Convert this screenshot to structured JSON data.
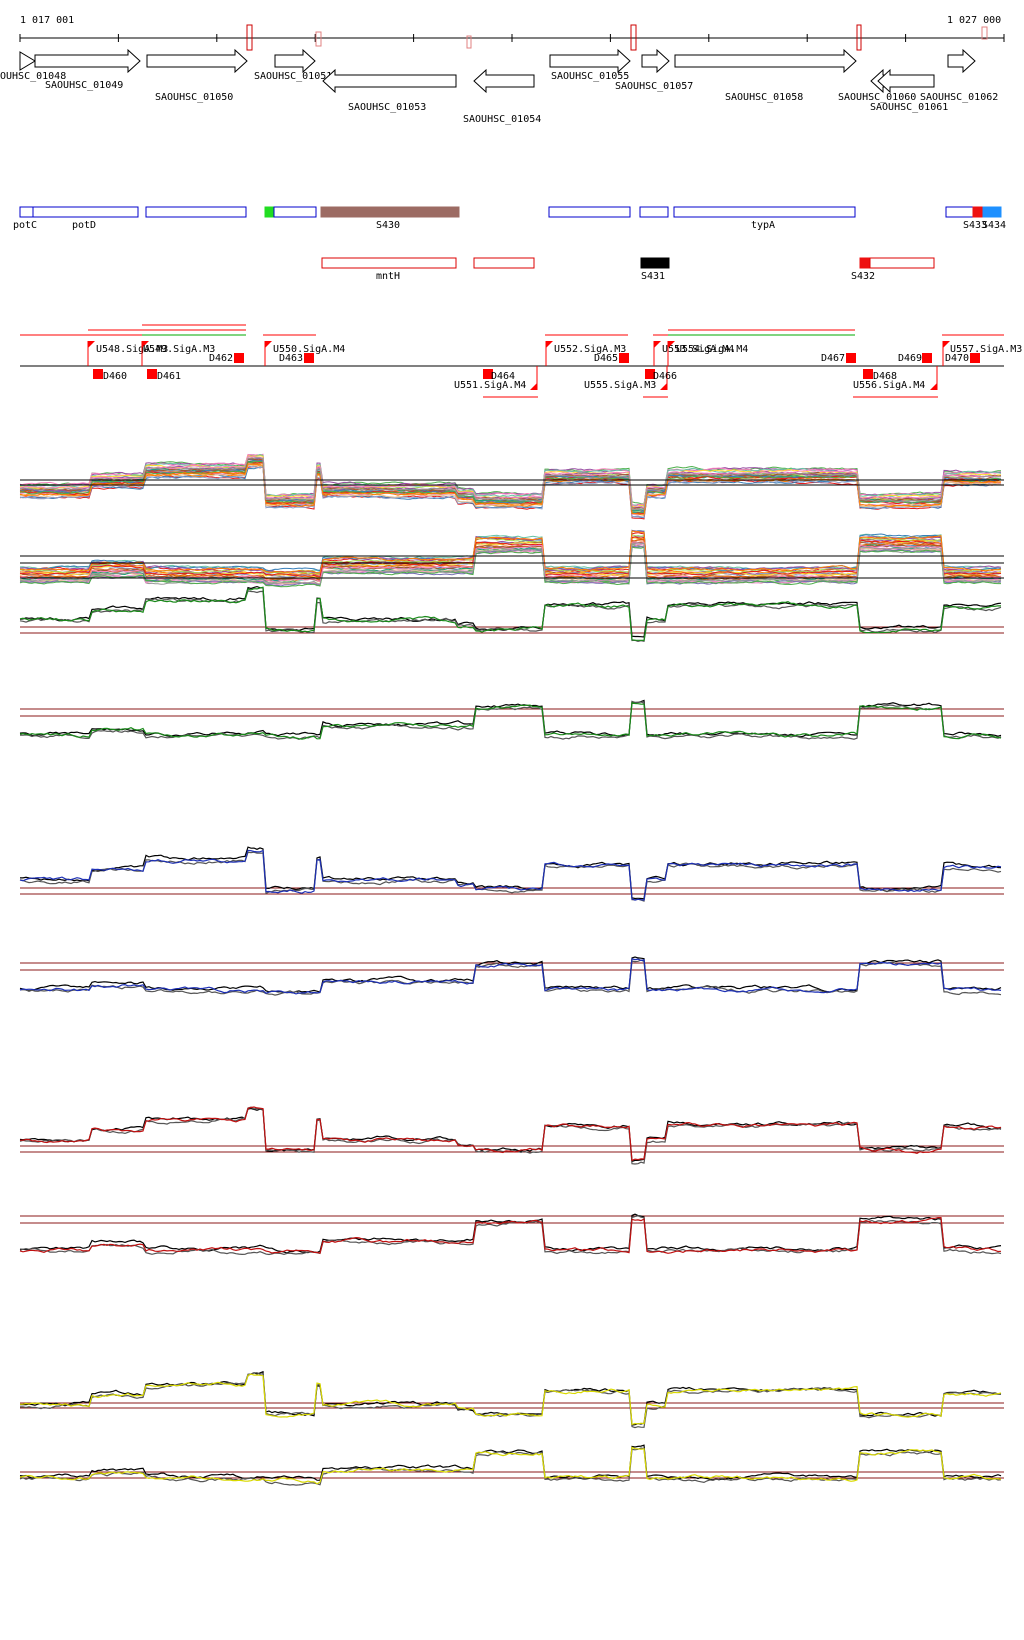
{
  "ruler": {
    "start_label": "1 017 001",
    "end_label": "1 027 000",
    "start_coord": 1017001,
    "end_coord": 1027000
  },
  "colors": {
    "gene_stroke": "#000000",
    "segment_blue": "#0000cc",
    "segment_red": "#dd0000",
    "segment_brown": "#9c6b63",
    "promoter_red": "#ff0000",
    "condition_line_red": "#ff0000",
    "condition_line_green": "#00aa00",
    "threshold_line": "#8b1a1a",
    "panel_green": "#1a8a1a",
    "panel_blue": "#1c2fb5",
    "panel_red": "#c01010",
    "panel_yellow": "#d9d900"
  },
  "genes": [
    {
      "id": "SAOUHSC_01048",
      "label": "OUHSC_01048",
      "strand": "+"
    },
    {
      "id": "SAOUHSC_01049",
      "label": "SAOUHSC_01049",
      "strand": "+"
    },
    {
      "id": "SAOUHSC_01050",
      "label": "SAOUHSC_01050",
      "strand": "+"
    },
    {
      "id": "SAOUHSC_01051",
      "label": "SAOUHSC_01051",
      "strand": "+"
    },
    {
      "id": "SAOUHSC_01053",
      "label": "SAOUHSC_01053",
      "strand": "-"
    },
    {
      "id": "SAOUHSC_01054",
      "label": "SAOUHSC_01054",
      "strand": "-"
    },
    {
      "id": "SAOUHSC_01055",
      "label": "SAOUHSC_01055",
      "strand": "+"
    },
    {
      "id": "SAOUHSC_01057",
      "label": "SAOUHSC_01057",
      "strand": "+"
    },
    {
      "id": "SAOUHSC_01058",
      "label": "SAOUHSC_01058",
      "strand": "+"
    },
    {
      "id": "SAOUHSC_01060",
      "label": "SAOUHSC_01060",
      "strand": "-"
    },
    {
      "id": "SAOUHSC_01061",
      "label": "SAOUHSC_01061",
      "strand": "-"
    },
    {
      "id": "SAOUHSC_01062",
      "label": "SAOUHSC_01062",
      "strand": "+"
    }
  ],
  "segments_forward": [
    {
      "label": "potC"
    },
    {
      "label": "potD"
    },
    {
      "label": ""
    },
    {
      "label": ""
    },
    {
      "label": "S430"
    },
    {
      "label": ""
    },
    {
      "label": ""
    },
    {
      "label": "typA"
    },
    {
      "label": "S433"
    },
    {
      "label": "S434"
    }
  ],
  "segments_reverse": [
    {
      "label": "mntH"
    },
    {
      "label": ""
    },
    {
      "label": "S431"
    },
    {
      "label": "S432"
    }
  ],
  "promoters_forward": [
    "U548.SigA.M3",
    "U549.SigA.M3",
    "U550.SigA.M4",
    "U552.SigA.M3",
    "U553.SigA.M4",
    "U554.SigA.M4",
    "U557.SigA.M3"
  ],
  "promoters_reverse": [
    "U551.SigA.M4",
    "U555.SigA.M3",
    "U556.SigA.M4"
  ],
  "terminators": [
    "D460",
    "D461",
    "D462",
    "D463",
    "D464",
    "D465",
    "D466",
    "D467",
    "D468",
    "D469",
    "D470"
  ],
  "panels": [
    {
      "name": "all-conditions-forward",
      "color": "multi"
    },
    {
      "name": "all-conditions-reverse",
      "color": "multi"
    },
    {
      "name": "green-forward",
      "color": "green"
    },
    {
      "name": "green-reverse",
      "color": "green"
    },
    {
      "name": "blue-forward",
      "color": "blue"
    },
    {
      "name": "blue-reverse",
      "color": "blue"
    },
    {
      "name": "red-forward",
      "color": "red"
    },
    {
      "name": "red-reverse",
      "color": "red"
    },
    {
      "name": "yellow-forward",
      "color": "yellow"
    },
    {
      "name": "yellow-reverse",
      "color": "yellow"
    }
  ]
}
